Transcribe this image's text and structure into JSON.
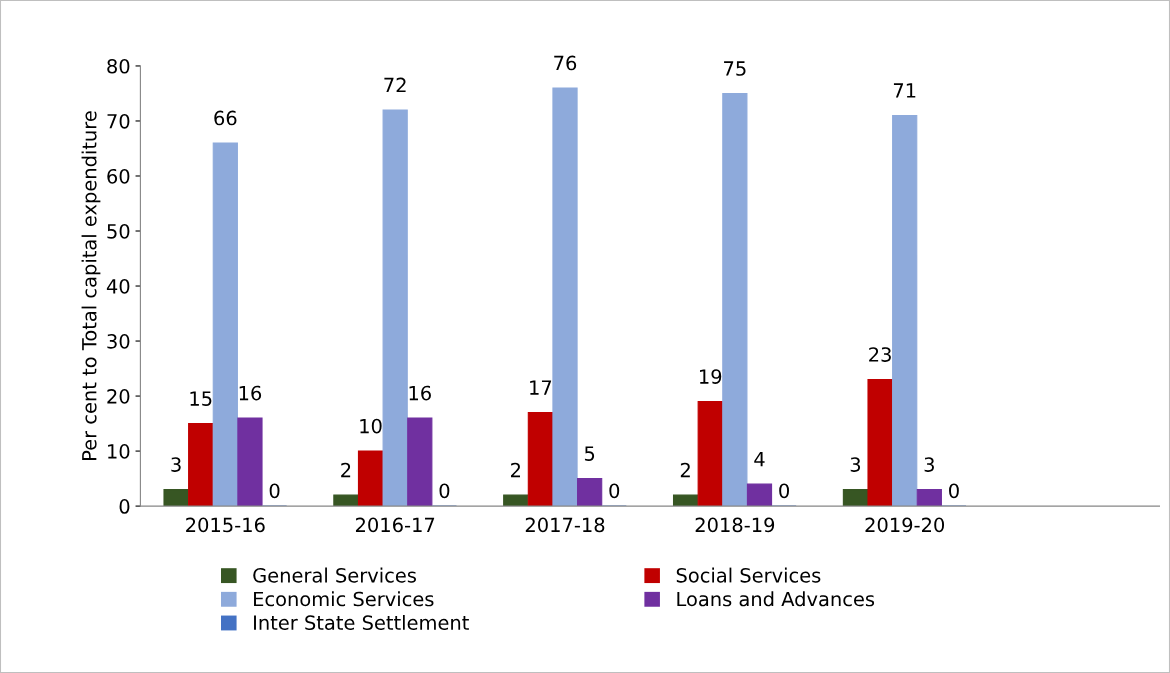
{
  "chart_data": {
    "type": "bar",
    "ylabel": "Per cent to Total capital expenditure",
    "categories": [
      "2015-16",
      "2016-17",
      "2017-18",
      "2018-19",
      "2019-20",
      null
    ],
    "series": [
      {
        "name": "General Services",
        "color": "#375623",
        "values": [
          3,
          2,
          2,
          2,
          3,
          null
        ]
      },
      {
        "name": "Social Services",
        "color": "#c00000",
        "values": [
          15,
          10,
          17,
          19,
          23,
          null
        ]
      },
      {
        "name": "Economic Services",
        "color": "#8eaadb",
        "values": [
          66,
          72,
          76,
          75,
          71,
          null
        ]
      },
      {
        "name": "Loans and Advances",
        "color": "#7030a0",
        "values": [
          16,
          16,
          5,
          4,
          3,
          null
        ]
      },
      {
        "name": "Inter State Settlement",
        "color": "#4472c4",
        "values": [
          0,
          0,
          0,
          0,
          0,
          null
        ]
      }
    ],
    "ylim": [
      0,
      80
    ],
    "yticks": [
      0,
      10,
      20,
      30,
      40,
      50,
      60,
      70,
      80
    ],
    "data_labels": true,
    "legend": "bottom",
    "grid": false
  }
}
